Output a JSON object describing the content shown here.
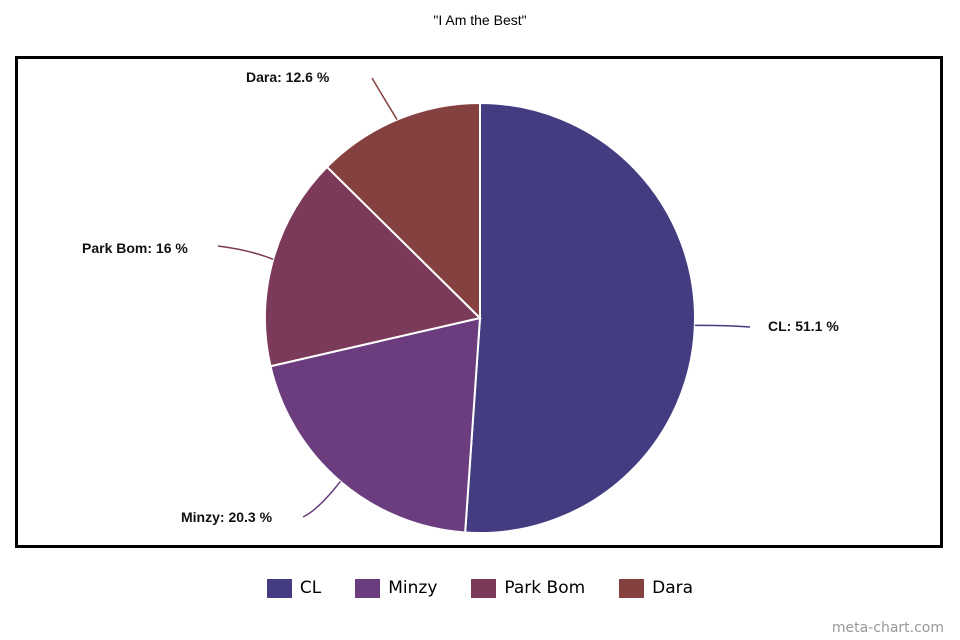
{
  "chart_data": {
    "type": "pie",
    "title": "\"I Am the Best\"",
    "slices": [
      {
        "label": "CL",
        "value": 51.1,
        "color": "#433c80",
        "display": "CL: 51.1 %"
      },
      {
        "label": "Minzy",
        "value": 20.3,
        "color": "#6c3d7e",
        "display": "Minzy: 20.3 %"
      },
      {
        "label": "Park Bom",
        "value": 16,
        "color": "#7c3a5a",
        "display": "Park Bom: 16 %"
      },
      {
        "label": "Dara",
        "value": 12.6,
        "color": "#854140",
        "display": "Dara: 12.6 %"
      }
    ],
    "legend_position": "bottom"
  },
  "watermark": "meta-chart.com"
}
